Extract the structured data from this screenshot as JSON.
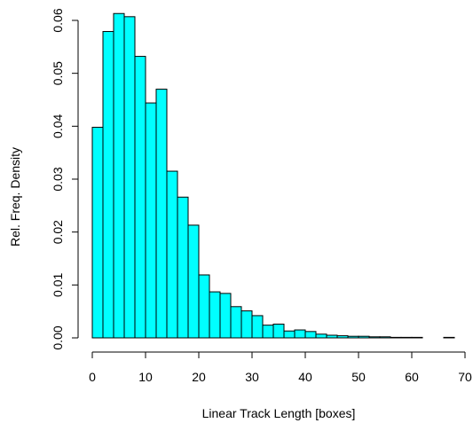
{
  "chart_data": {
    "type": "bar",
    "title": "",
    "xlabel": "Linear Track Length [boxes]",
    "ylabel": "Rel. Freq. Density",
    "xlim": [
      0,
      70
    ],
    "ylim": [
      0,
      0.06
    ],
    "x_ticks": [
      0,
      10,
      20,
      30,
      40,
      50,
      60,
      70
    ],
    "x_tick_labels": [
      "0",
      "10",
      "20",
      "30",
      "40",
      "50",
      "60",
      "70"
    ],
    "y_ticks": [
      0,
      0.01,
      0.02,
      0.03,
      0.04,
      0.05,
      0.06
    ],
    "y_tick_labels": [
      "0.00",
      "0.01",
      "0.02",
      "0.03",
      "0.04",
      "0.05",
      "0.06"
    ],
    "grid": false,
    "bar_color": "#00ffff",
    "bar_edge_color": "#000000",
    "bins": [
      {
        "x0": 0,
        "x1": 2,
        "value": 0.0398
      },
      {
        "x0": 2,
        "x1": 4,
        "value": 0.0579
      },
      {
        "x0": 4,
        "x1": 6,
        "value": 0.0613
      },
      {
        "x0": 6,
        "x1": 8,
        "value": 0.0607
      },
      {
        "x0": 8,
        "x1": 10,
        "value": 0.0532
      },
      {
        "x0": 10,
        "x1": 12,
        "value": 0.0444
      },
      {
        "x0": 12,
        "x1": 14,
        "value": 0.047
      },
      {
        "x0": 14,
        "x1": 16,
        "value": 0.0315
      },
      {
        "x0": 16,
        "x1": 18,
        "value": 0.0266
      },
      {
        "x0": 18,
        "x1": 20,
        "value": 0.0213
      },
      {
        "x0": 20,
        "x1": 22,
        "value": 0.0119
      },
      {
        "x0": 22,
        "x1": 24,
        "value": 0.0087
      },
      {
        "x0": 24,
        "x1": 26,
        "value": 0.0084
      },
      {
        "x0": 26,
        "x1": 28,
        "value": 0.0059
      },
      {
        "x0": 28,
        "x1": 30,
        "value": 0.0051
      },
      {
        "x0": 30,
        "x1": 32,
        "value": 0.0042
      },
      {
        "x0": 32,
        "x1": 34,
        "value": 0.0024
      },
      {
        "x0": 34,
        "x1": 36,
        "value": 0.0026
      },
      {
        "x0": 36,
        "x1": 38,
        "value": 0.0013
      },
      {
        "x0": 38,
        "x1": 40,
        "value": 0.0015
      },
      {
        "x0": 40,
        "x1": 42,
        "value": 0.0012
      },
      {
        "x0": 42,
        "x1": 44,
        "value": 0.0007
      },
      {
        "x0": 44,
        "x1": 46,
        "value": 0.0005
      },
      {
        "x0": 46,
        "x1": 48,
        "value": 0.0004
      },
      {
        "x0": 48,
        "x1": 50,
        "value": 0.0003
      },
      {
        "x0": 50,
        "x1": 52,
        "value": 0.0003
      },
      {
        "x0": 52,
        "x1": 54,
        "value": 0.0002
      },
      {
        "x0": 54,
        "x1": 56,
        "value": 0.0002
      },
      {
        "x0": 56,
        "x1": 58,
        "value": 0.0001
      },
      {
        "x0": 58,
        "x1": 60,
        "value": 0.0001
      },
      {
        "x0": 60,
        "x1": 62,
        "value": 0.0001
      },
      {
        "x0": 62,
        "x1": 64,
        "value": 0.0
      },
      {
        "x0": 64,
        "x1": 66,
        "value": 0.0
      },
      {
        "x0": 66,
        "x1": 68,
        "value": 0.0001
      }
    ]
  }
}
